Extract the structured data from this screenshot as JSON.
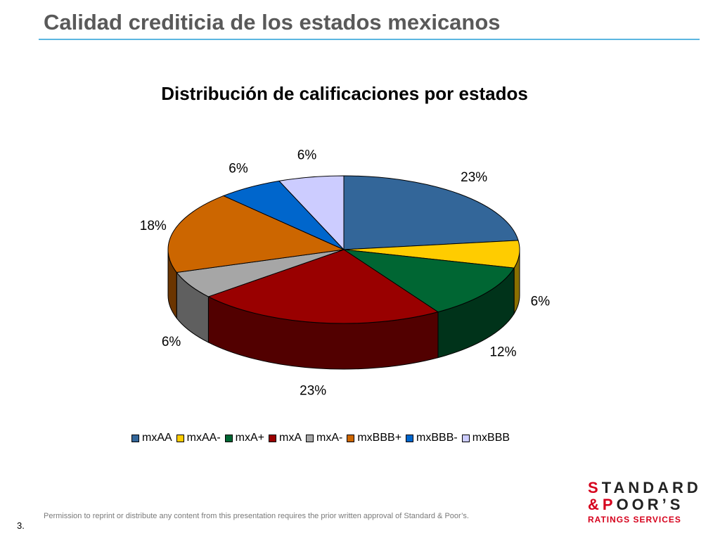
{
  "slide": {
    "title": "Calidad crediticia de los estados mexicanos",
    "permission": "Permission to reprint or distribute any content from this presentation requires the prior written approval of Standard & Poor’s.",
    "page_number": "3."
  },
  "logo": {
    "line1_first": "S",
    "line1_rest": "TANDARD",
    "line2_first": "&P",
    "line2_rest": "OOR’S",
    "line3": "RATINGS SERVICES",
    "accent_color": "#d6001c"
  },
  "chart_data": {
    "type": "pie",
    "title": "Distribución de calificaciones por estados",
    "legend_position": "bottom",
    "slices": [
      {
        "name": "mxAA",
        "value": 23,
        "label": "23%",
        "color": "#336699",
        "side_color": "#1f3d5c"
      },
      {
        "name": "mxAA-",
        "value": 6,
        "label": "6%",
        "color": "#ffcc00",
        "side_color": "#8a6f00"
      },
      {
        "name": "mxA+",
        "value": 12,
        "label": "12%",
        "color": "#006633",
        "side_color": "#00331a"
      },
      {
        "name": "mxA",
        "value": 23,
        "label": "23%",
        "color": "#990000",
        "side_color": "#520000"
      },
      {
        "name": "mxA-",
        "value": 6,
        "label": "6%",
        "color": "#a6a6a6",
        "side_color": "#5f5f5f"
      },
      {
        "name": "mxBBB+",
        "value": 18,
        "label": "18%",
        "color": "#cc6600",
        "side_color": "#6b3500"
      },
      {
        "name": "mxBBB-",
        "value": 6,
        "label": "6%",
        "color": "#0066cc",
        "side_color": "#003366"
      },
      {
        "name": "mxBBB",
        "value": 6,
        "label": "6%",
        "color": "#ccccff",
        "side_color": "#8080b0"
      }
    ]
  }
}
